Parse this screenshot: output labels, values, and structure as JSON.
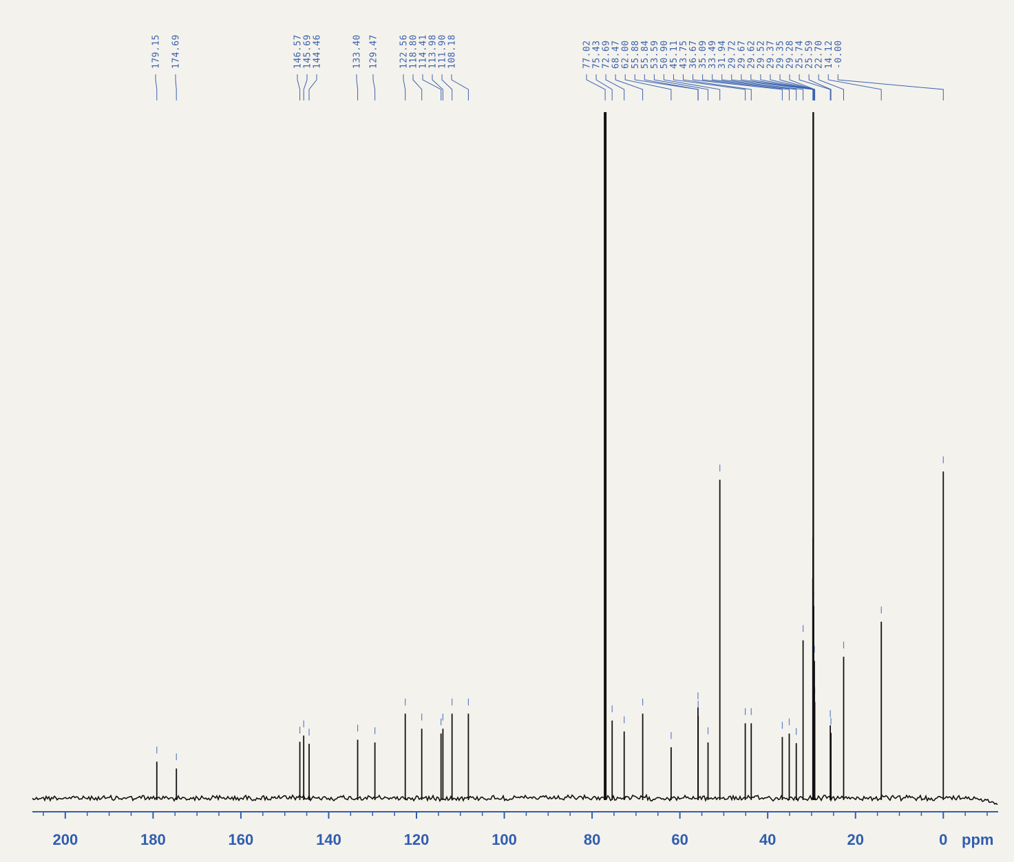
{
  "chart_data": {
    "type": "line",
    "title": "",
    "xlabel": "ppm",
    "ylabel": "",
    "xlim": [
      207.5,
      -12.5
    ],
    "x_reversed": true,
    "grid": false,
    "x_ticks": [
      200,
      180,
      160,
      140,
      120,
      100,
      80,
      60,
      40,
      20,
      0
    ],
    "x_tick_labels": [
      "200",
      "180",
      "160",
      "140",
      "120",
      "100",
      "80",
      "60",
      "40",
      "20",
      "0"
    ],
    "peak_labels": [
      "179.15",
      "174.69",
      "146.57",
      "145.69",
      "144.46",
      "133.40",
      "129.47",
      "122.56",
      "118.80",
      "114.41",
      "113.98",
      "111.90",
      "108.18",
      "77.02",
      "75.43",
      "72.69",
      "68.47",
      "62.00",
      "55.88",
      "55.84",
      "53.59",
      "50.90",
      "45.11",
      "43.75",
      "36.67",
      "35.09",
      "33.49",
      "31.94",
      "29.72",
      "29.67",
      "29.62",
      "29.52",
      "29.37",
      "29.35",
      "29.28",
      "25.74",
      "25.59",
      "22.70",
      "14.12",
      "-0.00"
    ],
    "peaks": [
      {
        "ppm": 179.15,
        "height": 0.053
      },
      {
        "ppm": 174.69,
        "height": 0.043
      },
      {
        "ppm": 146.57,
        "height": 0.082
      },
      {
        "ppm": 145.69,
        "height": 0.091
      },
      {
        "ppm": 144.46,
        "height": 0.079
      },
      {
        "ppm": 133.4,
        "height": 0.085
      },
      {
        "ppm": 129.47,
        "height": 0.081
      },
      {
        "ppm": 122.56,
        "height": 0.123
      },
      {
        "ppm": 118.8,
        "height": 0.101
      },
      {
        "ppm": 114.41,
        "height": 0.094
      },
      {
        "ppm": 113.98,
        "height": 0.101
      },
      {
        "ppm": 111.9,
        "height": 0.123
      },
      {
        "ppm": 108.18,
        "height": 0.123
      },
      {
        "ppm": 77.02,
        "height": 1.0
      },
      {
        "ppm": 75.43,
        "height": 0.113
      },
      {
        "ppm": 72.69,
        "height": 0.097
      },
      {
        "ppm": 68.47,
        "height": 0.123
      },
      {
        "ppm": 62.0,
        "height": 0.074
      },
      {
        "ppm": 55.88,
        "height": 0.132
      },
      {
        "ppm": 55.84,
        "height": 0.12
      },
      {
        "ppm": 53.59,
        "height": 0.081
      },
      {
        "ppm": 50.9,
        "height": 0.464
      },
      {
        "ppm": 45.11,
        "height": 0.109
      },
      {
        "ppm": 43.75,
        "height": 0.109
      },
      {
        "ppm": 36.67,
        "height": 0.089
      },
      {
        "ppm": 35.09,
        "height": 0.094
      },
      {
        "ppm": 33.49,
        "height": 0.08
      },
      {
        "ppm": 31.94,
        "height": 0.23
      },
      {
        "ppm": 29.72,
        "height": 0.32
      },
      {
        "ppm": 29.67,
        "height": 0.38
      },
      {
        "ppm": 29.62,
        "height": 1.0
      },
      {
        "ppm": 29.52,
        "height": 0.28
      },
      {
        "ppm": 29.37,
        "height": 0.2
      },
      {
        "ppm": 29.35,
        "height": 0.16
      },
      {
        "ppm": 29.28,
        "height": 0.14
      },
      {
        "ppm": 25.74,
        "height": 0.106
      },
      {
        "ppm": 25.59,
        "height": 0.095
      },
      {
        "ppm": 22.7,
        "height": 0.206
      },
      {
        "ppm": 14.12,
        "height": 0.257
      },
      {
        "ppm": 0.0,
        "height": 0.476
      }
    ]
  },
  "colors": {
    "background": "#f4f2ec",
    "accent": "#2f5db0",
    "peak_label": "#3a62b0",
    "spectrum": "#111111"
  }
}
